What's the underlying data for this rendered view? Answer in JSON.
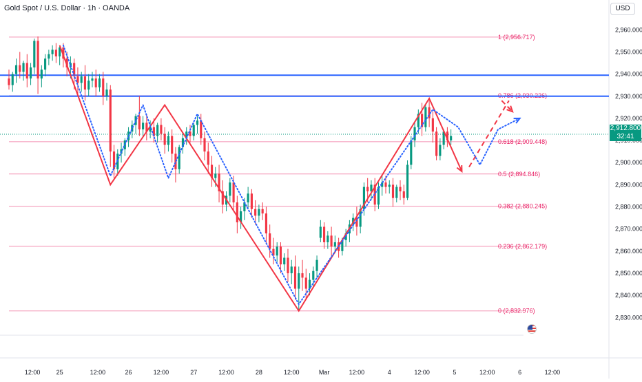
{
  "header": {
    "title": "Gold Spot / U.S. Dollar · 1h · OANDA",
    "currency_button": "USD"
  },
  "price_tag": {
    "price": "2,912.800",
    "countdown": "32:41"
  },
  "colors": {
    "up": "#089981",
    "down": "#f23645",
    "fib": "#f48fb1",
    "fib_label": "#e91e63",
    "resistance": "#2962ff",
    "zigzag": "#f23645",
    "projection": "#2962ff",
    "last_price_line": "#089981"
  },
  "chart_data": {
    "type": "candlestick",
    "symbol": "Gold Spot / U.S. Dollar",
    "interval": "1h",
    "source": "OANDA",
    "ylim": [
      2822,
      2966
    ],
    "y_ticks": [
      2830,
      2840,
      2850,
      2860,
      2870,
      2880,
      2890,
      2900,
      2910,
      2920,
      2930,
      2940,
      2950,
      2960
    ],
    "y_tick_labels": [
      "2,830.000",
      "2,840.000",
      "2,850.000",
      "2,860.000",
      "2,870.000",
      "2,880.000",
      "2,890.000",
      "2,900.000",
      "2,910.000",
      "2,920.000",
      "2,930.000",
      "2,940.000",
      "2,950.000",
      "2,960.000"
    ],
    "xlim": [
      0,
      158
    ],
    "x_ticks": [
      {
        "x": 6.5,
        "label": "12:00"
      },
      {
        "x": 14,
        "label": "25"
      },
      {
        "x": 24.5,
        "label": "12:00"
      },
      {
        "x": 33,
        "label": "26"
      },
      {
        "x": 42,
        "label": "12:00"
      },
      {
        "x": 51,
        "label": "27"
      },
      {
        "x": 60,
        "label": "12:00"
      },
      {
        "x": 69,
        "label": "28"
      },
      {
        "x": 78,
        "label": "12:00"
      },
      {
        "x": 87,
        "label": "Mar"
      },
      {
        "x": 96,
        "label": "12:00"
      },
      {
        "x": 105,
        "label": "4"
      },
      {
        "x": 114,
        "label": "12:00"
      },
      {
        "x": 123,
        "label": "5"
      },
      {
        "x": 132,
        "label": "12:00"
      },
      {
        "x": 141,
        "label": "6"
      },
      {
        "x": 150,
        "label": "12:00"
      }
    ],
    "candles": [
      {
        "x": 0,
        "o": 2938,
        "h": 2942,
        "c": 2935,
        "l": 2933
      },
      {
        "x": 1,
        "o": 2935,
        "h": 2941,
        "c": 2940,
        "l": 2932
      },
      {
        "x": 2,
        "o": 2940,
        "h": 2947,
        "c": 2944,
        "l": 2936
      },
      {
        "x": 3,
        "o": 2944,
        "h": 2950,
        "c": 2941,
        "l": 2938
      },
      {
        "x": 4,
        "o": 2941,
        "h": 2946,
        "c": 2945,
        "l": 2937
      },
      {
        "x": 5,
        "o": 2945,
        "h": 2949,
        "c": 2938,
        "l": 2934
      },
      {
        "x": 6,
        "o": 2938,
        "h": 2945,
        "c": 2943,
        "l": 2935
      },
      {
        "x": 7,
        "o": 2943,
        "h": 2956,
        "c": 2955,
        "l": 2940
      },
      {
        "x": 8,
        "o": 2955,
        "h": 2957,
        "c": 2938,
        "l": 2931
      },
      {
        "x": 9,
        "o": 2938,
        "h": 2944,
        "c": 2942,
        "l": 2934
      },
      {
        "x": 10,
        "o": 2942,
        "h": 2949,
        "c": 2947,
        "l": 2939
      },
      {
        "x": 11,
        "o": 2947,
        "h": 2951,
        "c": 2949,
        "l": 2944
      },
      {
        "x": 12,
        "o": 2949,
        "h": 2953,
        "c": 2951,
        "l": 2946
      },
      {
        "x": 13,
        "o": 2951,
        "h": 2954,
        "c": 2948,
        "l": 2945
      },
      {
        "x": 14,
        "o": 2948,
        "h": 2953,
        "c": 2952,
        "l": 2944
      },
      {
        "x": 15,
        "o": 2952,
        "h": 2954,
        "c": 2947,
        "l": 2943
      },
      {
        "x": 16,
        "o": 2947,
        "h": 2950,
        "c": 2943,
        "l": 2939
      },
      {
        "x": 17,
        "o": 2943,
        "h": 2948,
        "c": 2945,
        "l": 2938
      },
      {
        "x": 18,
        "o": 2945,
        "h": 2947,
        "c": 2939,
        "l": 2933
      },
      {
        "x": 19,
        "o": 2939,
        "h": 2943,
        "c": 2936,
        "l": 2931
      },
      {
        "x": 20,
        "o": 2936,
        "h": 2941,
        "c": 2939,
        "l": 2932
      },
      {
        "x": 21,
        "o": 2939,
        "h": 2944,
        "c": 2933,
        "l": 2928
      },
      {
        "x": 22,
        "o": 2933,
        "h": 2940,
        "c": 2937,
        "l": 2930
      },
      {
        "x": 23,
        "o": 2937,
        "h": 2941,
        "c": 2938,
        "l": 2934
      },
      {
        "x": 24,
        "o": 2938,
        "h": 2942,
        "c": 2934,
        "l": 2930
      },
      {
        "x": 25,
        "o": 2934,
        "h": 2940,
        "c": 2938,
        "l": 2932
      },
      {
        "x": 26,
        "o": 2938,
        "h": 2941,
        "c": 2930,
        "l": 2926
      },
      {
        "x": 27,
        "o": 2930,
        "h": 2936,
        "c": 2933,
        "l": 2928
      },
      {
        "x": 28,
        "o": 2933,
        "h": 2935,
        "c": 2905,
        "l": 2898
      },
      {
        "x": 29,
        "o": 2905,
        "h": 2908,
        "c": 2897,
        "l": 2892
      },
      {
        "x": 30,
        "o": 2897,
        "h": 2906,
        "c": 2904,
        "l": 2894
      },
      {
        "x": 31,
        "o": 2904,
        "h": 2909,
        "c": 2906,
        "l": 2900
      },
      {
        "x": 32,
        "o": 2906,
        "h": 2911,
        "c": 2910,
        "l": 2903
      },
      {
        "x": 33,
        "o": 2910,
        "h": 2916,
        "c": 2914,
        "l": 2907
      },
      {
        "x": 34,
        "o": 2914,
        "h": 2919,
        "c": 2917,
        "l": 2911
      },
      {
        "x": 35,
        "o": 2917,
        "h": 2922,
        "c": 2921,
        "l": 2913
      },
      {
        "x": 36,
        "o": 2921,
        "h": 2930,
        "c": 2915,
        "l": 2912
      },
      {
        "x": 37,
        "o": 2915,
        "h": 2921,
        "c": 2918,
        "l": 2912
      },
      {
        "x": 38,
        "o": 2918,
        "h": 2922,
        "c": 2914,
        "l": 2910
      },
      {
        "x": 39,
        "o": 2914,
        "h": 2919,
        "c": 2916,
        "l": 2911
      },
      {
        "x": 40,
        "o": 2916,
        "h": 2920,
        "c": 2912,
        "l": 2909
      },
      {
        "x": 41,
        "o": 2912,
        "h": 2918,
        "c": 2917,
        "l": 2909
      },
      {
        "x": 42,
        "o": 2917,
        "h": 2920,
        "c": 2913,
        "l": 2910
      },
      {
        "x": 43,
        "o": 2913,
        "h": 2916,
        "c": 2908,
        "l": 2904
      },
      {
        "x": 44,
        "o": 2908,
        "h": 2914,
        "c": 2912,
        "l": 2905
      },
      {
        "x": 45,
        "o": 2912,
        "h": 2915,
        "c": 2904,
        "l": 2900
      },
      {
        "x": 46,
        "o": 2904,
        "h": 2907,
        "c": 2897,
        "l": 2891
      },
      {
        "x": 47,
        "o": 2897,
        "h": 2908,
        "c": 2907,
        "l": 2895
      },
      {
        "x": 48,
        "o": 2907,
        "h": 2913,
        "c": 2911,
        "l": 2904
      },
      {
        "x": 49,
        "o": 2911,
        "h": 2916,
        "c": 2914,
        "l": 2908
      },
      {
        "x": 50,
        "o": 2914,
        "h": 2917,
        "c": 2912,
        "l": 2909
      },
      {
        "x": 51,
        "o": 2912,
        "h": 2918,
        "c": 2917,
        "l": 2910
      },
      {
        "x": 52,
        "o": 2917,
        "h": 2921,
        "c": 2919,
        "l": 2913
      },
      {
        "x": 53,
        "o": 2919,
        "h": 2922,
        "c": 2911,
        "l": 2908
      },
      {
        "x": 54,
        "o": 2911,
        "h": 2914,
        "c": 2905,
        "l": 2901
      },
      {
        "x": 55,
        "o": 2905,
        "h": 2909,
        "c": 2899,
        "l": 2895
      },
      {
        "x": 56,
        "o": 2899,
        "h": 2903,
        "c": 2893,
        "l": 2889
      },
      {
        "x": 57,
        "o": 2893,
        "h": 2898,
        "c": 2895,
        "l": 2889
      },
      {
        "x": 58,
        "o": 2895,
        "h": 2899,
        "c": 2887,
        "l": 2882
      },
      {
        "x": 59,
        "o": 2887,
        "h": 2892,
        "c": 2881,
        "l": 2877
      },
      {
        "x": 60,
        "o": 2881,
        "h": 2887,
        "c": 2885,
        "l": 2878
      },
      {
        "x": 61,
        "o": 2885,
        "h": 2893,
        "c": 2891,
        "l": 2882
      },
      {
        "x": 62,
        "o": 2891,
        "h": 2894,
        "c": 2882,
        "l": 2878
      },
      {
        "x": 63,
        "o": 2882,
        "h": 2885,
        "c": 2873,
        "l": 2868
      },
      {
        "x": 64,
        "o": 2873,
        "h": 2880,
        "c": 2878,
        "l": 2870
      },
      {
        "x": 65,
        "o": 2878,
        "h": 2884,
        "c": 2882,
        "l": 2874
      },
      {
        "x": 66,
        "o": 2882,
        "h": 2889,
        "c": 2886,
        "l": 2879
      },
      {
        "x": 67,
        "o": 2886,
        "h": 2888,
        "c": 2879,
        "l": 2875
      },
      {
        "x": 68,
        "o": 2879,
        "h": 2883,
        "c": 2876,
        "l": 2872
      },
      {
        "x": 69,
        "o": 2876,
        "h": 2881,
        "c": 2879,
        "l": 2873
      },
      {
        "x": 70,
        "o": 2879,
        "h": 2882,
        "c": 2877,
        "l": 2874
      },
      {
        "x": 71,
        "o": 2877,
        "h": 2880,
        "c": 2868,
        "l": 2863
      },
      {
        "x": 72,
        "o": 2868,
        "h": 2872,
        "c": 2861,
        "l": 2857
      },
      {
        "x": 73,
        "o": 2861,
        "h": 2866,
        "c": 2858,
        "l": 2854
      },
      {
        "x": 74,
        "o": 2858,
        "h": 2864,
        "c": 2862,
        "l": 2855
      },
      {
        "x": 75,
        "o": 2862,
        "h": 2864,
        "c": 2854,
        "l": 2850
      },
      {
        "x": 76,
        "o": 2854,
        "h": 2859,
        "c": 2857,
        "l": 2851
      },
      {
        "x": 77,
        "o": 2857,
        "h": 2861,
        "c": 2850,
        "l": 2846
      },
      {
        "x": 78,
        "o": 2850,
        "h": 2856,
        "c": 2853,
        "l": 2845
      },
      {
        "x": 79,
        "o": 2853,
        "h": 2858,
        "c": 2843,
        "l": 2838
      },
      {
        "x": 80,
        "o": 2843,
        "h": 2853,
        "c": 2850,
        "l": 2833
      },
      {
        "x": 81,
        "o": 2850,
        "h": 2856,
        "c": 2848,
        "l": 2842
      },
      {
        "x": 82,
        "o": 2848,
        "h": 2852,
        "c": 2843,
        "l": 2838
      },
      {
        "x": 83,
        "o": 2843,
        "h": 2850,
        "c": 2847,
        "l": 2840
      },
      {
        "x": 84,
        "o": 2847,
        "h": 2853,
        "c": 2851,
        "l": 2844
      },
      {
        "x": 85,
        "o": 2851,
        "h": 2858,
        "c": 2856,
        "l": 2848
      },
      {
        "x": 86,
        "o": 2866,
        "h": 2874,
        "c": 2871,
        "l": 2864
      },
      {
        "x": 87,
        "o": 2871,
        "h": 2873,
        "c": 2864,
        "l": 2861
      },
      {
        "x": 88,
        "o": 2864,
        "h": 2869,
        "c": 2867,
        "l": 2861
      },
      {
        "x": 89,
        "o": 2867,
        "h": 2871,
        "c": 2862,
        "l": 2858
      },
      {
        "x": 90,
        "o": 2862,
        "h": 2867,
        "c": 2864,
        "l": 2859
      },
      {
        "x": 91,
        "o": 2864,
        "h": 2866,
        "c": 2860,
        "l": 2857
      },
      {
        "x": 92,
        "o": 2860,
        "h": 2866,
        "c": 2865,
        "l": 2858
      },
      {
        "x": 93,
        "o": 2865,
        "h": 2870,
        "c": 2868,
        "l": 2862
      },
      {
        "x": 94,
        "o": 2868,
        "h": 2874,
        "c": 2872,
        "l": 2864
      },
      {
        "x": 95,
        "o": 2872,
        "h": 2877,
        "c": 2875,
        "l": 2869
      },
      {
        "x": 96,
        "o": 2875,
        "h": 2880,
        "c": 2871,
        "l": 2867
      },
      {
        "x": 97,
        "o": 2871,
        "h": 2881,
        "c": 2879,
        "l": 2868
      },
      {
        "x": 98,
        "o": 2879,
        "h": 2891,
        "c": 2889,
        "l": 2876
      },
      {
        "x": 99,
        "o": 2889,
        "h": 2893,
        "c": 2887,
        "l": 2882
      },
      {
        "x": 100,
        "o": 2887,
        "h": 2892,
        "c": 2890,
        "l": 2883
      },
      {
        "x": 101,
        "o": 2890,
        "h": 2893,
        "c": 2881,
        "l": 2878
      },
      {
        "x": 102,
        "o": 2881,
        "h": 2891,
        "c": 2889,
        "l": 2879
      },
      {
        "x": 103,
        "o": 2889,
        "h": 2894,
        "c": 2891,
        "l": 2885
      },
      {
        "x": 104,
        "o": 2891,
        "h": 2894,
        "c": 2889,
        "l": 2886
      },
      {
        "x": 105,
        "o": 2889,
        "h": 2892,
        "c": 2890,
        "l": 2886
      },
      {
        "x": 106,
        "o": 2890,
        "h": 2893,
        "c": 2884,
        "l": 2880
      },
      {
        "x": 107,
        "o": 2884,
        "h": 2890,
        "c": 2889,
        "l": 2882
      },
      {
        "x": 108,
        "o": 2889,
        "h": 2892,
        "c": 2887,
        "l": 2883
      },
      {
        "x": 109,
        "o": 2887,
        "h": 2890,
        "c": 2884,
        "l": 2881
      },
      {
        "x": 110,
        "o": 2884,
        "h": 2901,
        "c": 2899,
        "l": 2883
      },
      {
        "x": 111,
        "o": 2899,
        "h": 2912,
        "c": 2910,
        "l": 2897
      },
      {
        "x": 112,
        "o": 2910,
        "h": 2918,
        "c": 2916,
        "l": 2907
      },
      {
        "x": 113,
        "o": 2916,
        "h": 2924,
        "c": 2922,
        "l": 2913
      },
      {
        "x": 114,
        "o": 2922,
        "h": 2927,
        "c": 2916,
        "l": 2912
      },
      {
        "x": 115,
        "o": 2916,
        "h": 2926,
        "c": 2925,
        "l": 2914
      },
      {
        "x": 116,
        "o": 2925,
        "h": 2928,
        "c": 2920,
        "l": 2916
      },
      {
        "x": 117,
        "o": 2920,
        "h": 2923,
        "c": 2914,
        "l": 2909
      },
      {
        "x": 118,
        "o": 2914,
        "h": 2916,
        "c": 2903,
        "l": 2901
      },
      {
        "x": 119,
        "o": 2903,
        "h": 2911,
        "c": 2908,
        "l": 2901
      },
      {
        "x": 120,
        "o": 2908,
        "h": 2915,
        "c": 2914,
        "l": 2906
      },
      {
        "x": 121,
        "o": 2914,
        "h": 2916,
        "c": 2910,
        "l": 2907
      },
      {
        "x": 122,
        "o": 2910,
        "h": 2915,
        "c": 2912,
        "l": 2908
      }
    ],
    "fib_levels": [
      {
        "price": 2956.717,
        "label": "1 (2,956.717)"
      },
      {
        "price": 2930.226,
        "label": "0.786 (2,930.226)"
      },
      {
        "price": 2909.448,
        "label": "0.618 (2,909.448)"
      },
      {
        "price": 2894.846,
        "label": "0.5 (2,894.846)"
      },
      {
        "price": 2880.245,
        "label": "0.382 (2,880.245)"
      },
      {
        "price": 2862.179,
        "label": "0.236 (2,862.179)"
      },
      {
        "price": 2832.976,
        "label": "0 (2,832.976)"
      }
    ],
    "fib_range": {
      "from": 0,
      "to": 142,
      "label_x": 135
    },
    "resistance_lines": [
      2939.5,
      2930.0
    ],
    "last_price": 2912.8,
    "zigzag": [
      {
        "x": 14,
        "y": 2953
      },
      {
        "x": 28,
        "y": 2890
      },
      {
        "x": 43,
        "y": 2926
      },
      {
        "x": 80,
        "y": 2833
      },
      {
        "x": 116,
        "y": 2929
      },
      {
        "x": 125,
        "y": 2896
      }
    ],
    "zigzag_arrow": {
      "from": {
        "x": 120,
        "y": 2912
      },
      "to": {
        "x": 125,
        "y": 2896
      }
    },
    "projection_dashed": [
      {
        "x": 127,
        "y": 2898
      },
      {
        "x": 138,
        "y": 2928
      }
    ],
    "projection_dashed_arrow": {
      "from": {
        "x": 136,
        "y": 2928
      },
      "to": {
        "x": 139,
        "y": 2923
      }
    },
    "dotted_path": [
      {
        "x": 15,
        "y": 2953
      },
      {
        "x": 28,
        "y": 2894
      },
      {
        "x": 37,
        "y": 2926
      },
      {
        "x": 44,
        "y": 2893
      },
      {
        "x": 52,
        "y": 2922
      },
      {
        "x": 80,
        "y": 2836
      },
      {
        "x": 117,
        "y": 2924
      },
      {
        "x": 124,
        "y": 2916
      },
      {
        "x": 130,
        "y": 2899
      },
      {
        "x": 135,
        "y": 2915
      },
      {
        "x": 141,
        "y": 2920
      }
    ],
    "dotted_arrow_tip": {
      "x": 141,
      "y": 2920
    }
  }
}
